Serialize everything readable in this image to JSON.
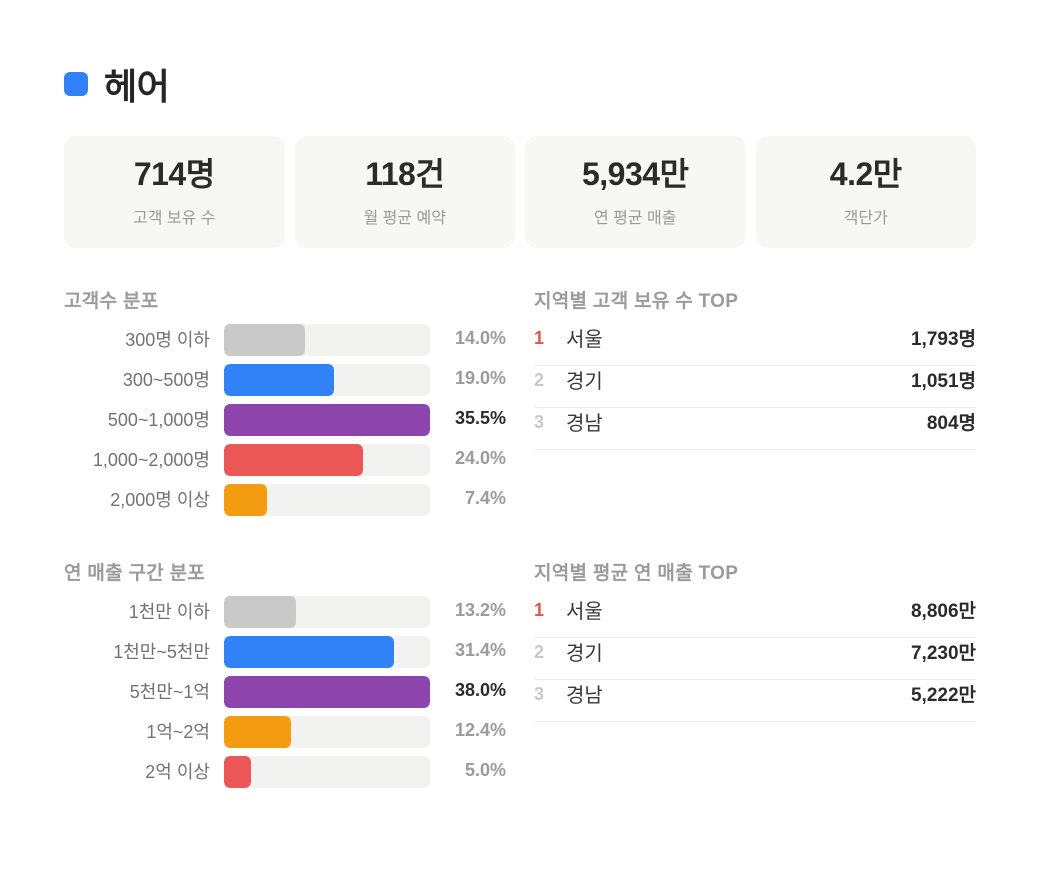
{
  "header": {
    "title": "헤어",
    "color": "#3182f6"
  },
  "stats": [
    {
      "value": "714명",
      "label": "고객 보유 수"
    },
    {
      "value": "118건",
      "label": "월 평균 예약"
    },
    {
      "value": "5,934만",
      "label": "연 평균 매출"
    },
    {
      "value": "4.2만",
      "label": "객단가"
    }
  ],
  "chart_data": [
    {
      "type": "bar",
      "orientation": "horizontal",
      "title": "고객수 분포",
      "categories": [
        "300명 이하",
        "300~500명",
        "500~1,000명",
        "1,000~2,000명",
        "2,000명 이상"
      ],
      "values": [
        14.0,
        19.0,
        35.5,
        24.0,
        7.4
      ],
      "value_labels": [
        "14.0%",
        "19.0%",
        "35.5%",
        "24.0%",
        "7.4%"
      ],
      "colors": [
        "#c9c9c9",
        "#3182f6",
        "#8e44ad",
        "#eb5757",
        "#f39c12"
      ],
      "highlight_index": 2,
      "unit": "%"
    },
    {
      "type": "bar",
      "orientation": "horizontal",
      "title": "연 매출 구간 분포",
      "categories": [
        "1천만 이하",
        "1천만~5천만",
        "5천만~1억",
        "1억~2억",
        "2억 이상"
      ],
      "values": [
        13.2,
        31.4,
        38.0,
        12.4,
        5.0
      ],
      "value_labels": [
        "13.2%",
        "31.4%",
        "38.0%",
        "12.4%",
        "5.0%"
      ],
      "colors": [
        "#c9c9c9",
        "#3182f6",
        "#8e44ad",
        "#f39c12",
        "#eb5757"
      ],
      "highlight_index": 2,
      "unit": "%"
    },
    {
      "type": "table",
      "title": "지역별 고객 보유 수 TOP",
      "rows": [
        {
          "rank": "1",
          "region": "서울",
          "value": "1,793명"
        },
        {
          "rank": "2",
          "region": "경기",
          "value": "1,051명"
        },
        {
          "rank": "3",
          "region": "경남",
          "value": "804명"
        }
      ]
    },
    {
      "type": "table",
      "title": "지역별 평균 연 매출 TOP",
      "rows": [
        {
          "rank": "1",
          "region": "서울",
          "value": "8,806만"
        },
        {
          "rank": "2",
          "region": "경기",
          "value": "7,230만"
        },
        {
          "rank": "3",
          "region": "경남",
          "value": "5,222만"
        }
      ]
    }
  ]
}
